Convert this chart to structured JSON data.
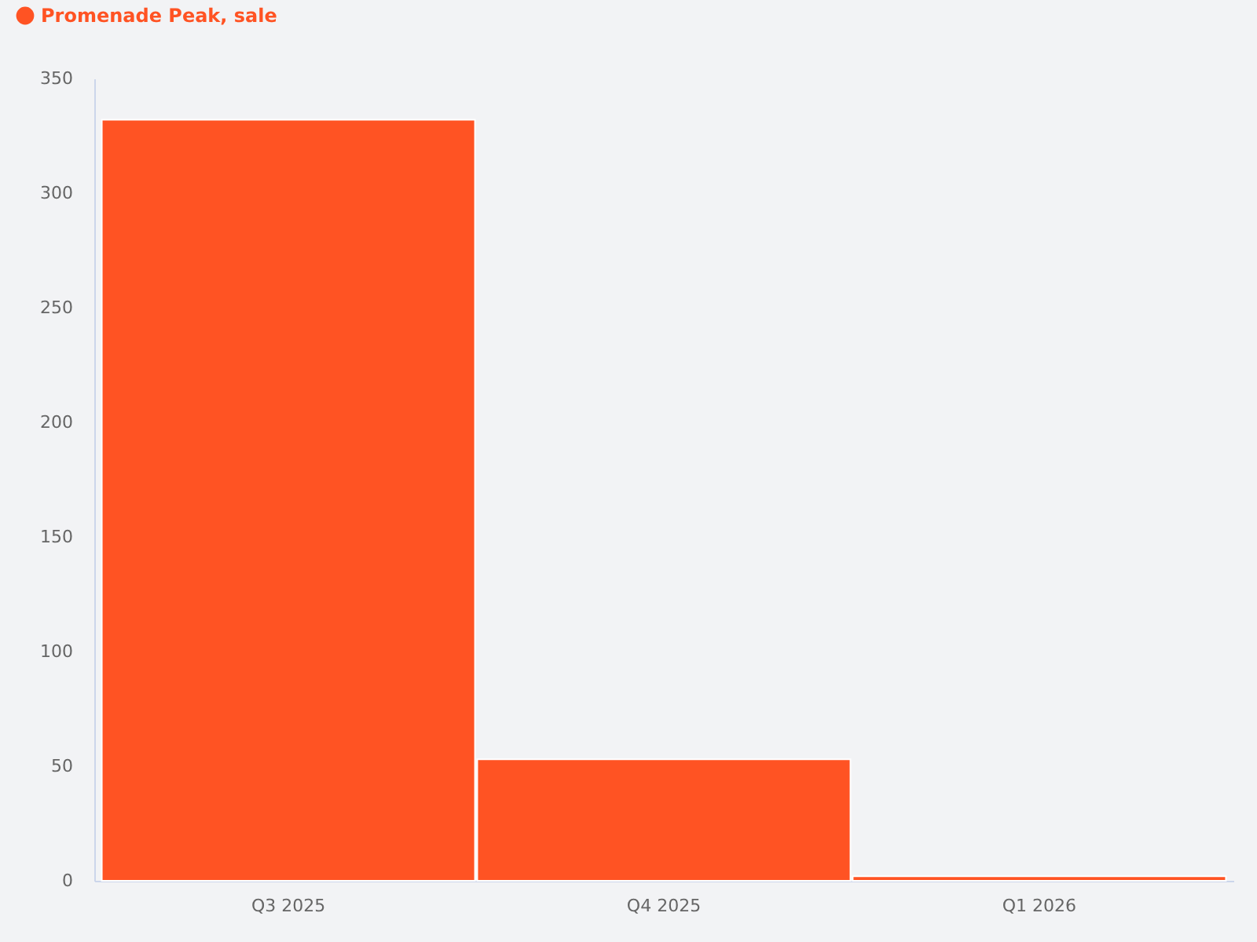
{
  "chart_data": {
    "type": "bar",
    "categories": [
      "Q3 2025",
      "Q4 2025",
      "Q1 2026"
    ],
    "series": [
      {
        "name": "Promenade Peak, sale",
        "color": "#ff5323",
        "values": [
          332,
          53,
          2
        ]
      }
    ],
    "ylim": [
      0,
      350
    ],
    "yticks": [
      0,
      50,
      100,
      150,
      200,
      250,
      300,
      350
    ],
    "grid": false,
    "legend": "top left"
  }
}
